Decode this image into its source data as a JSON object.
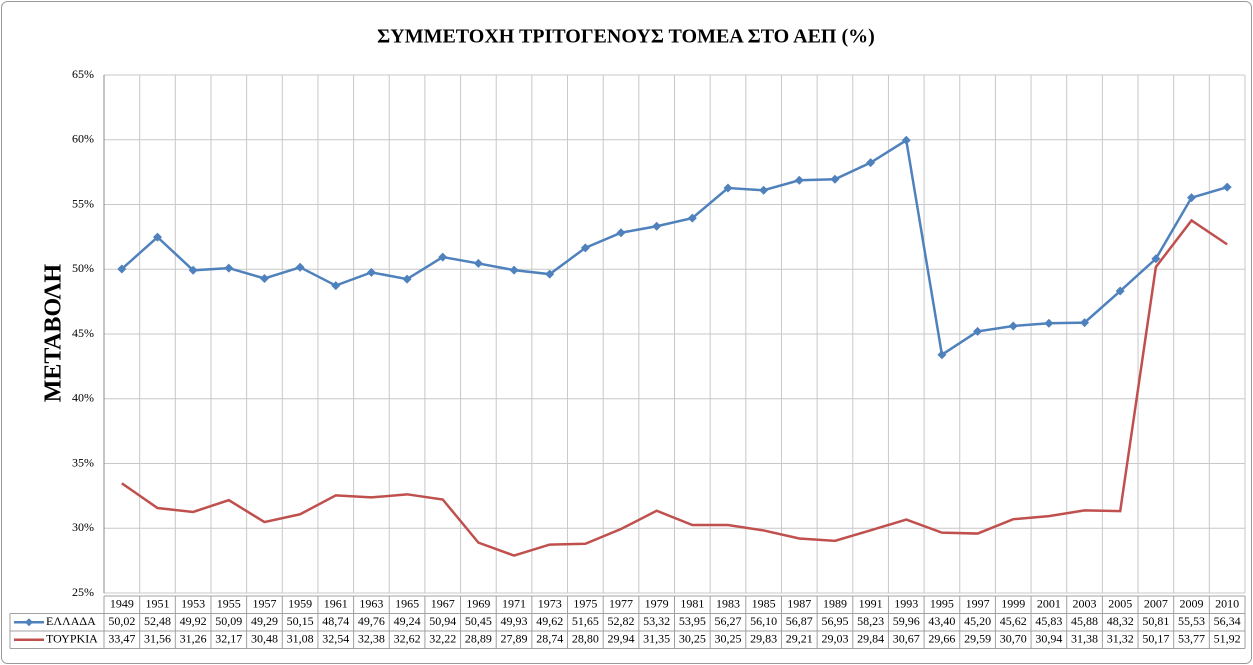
{
  "chart_data": {
    "type": "line",
    "title": "ΣΥΜΜΕΤΟΧΗ ΤΡΙΤΟΓΕΝΟΥΣ ΤΟΜΕΑ ΣΤΟ ΑΕΠ (%)",
    "y_label": "ΜΕΤΑΒΟΛΗ",
    "categories": [
      "1949",
      "1951",
      "1953",
      "1955",
      "1957",
      "1959",
      "1961",
      "1963",
      "1965",
      "1967",
      "1969",
      "1971",
      "1973",
      "1975",
      "1977",
      "1979",
      "1981",
      "1983",
      "1985",
      "1987",
      "1989",
      "1991",
      "1993",
      "1995",
      "1997",
      "1999",
      "2001",
      "2003",
      "2005",
      "2007",
      "2009",
      "2010"
    ],
    "series": [
      {
        "name": "ΕΛΛΑΔΑ",
        "color": "#4f81bd",
        "marker": "diamond",
        "values": [
          50.02,
          52.48,
          49.92,
          50.09,
          49.29,
          50.15,
          48.74,
          49.76,
          49.24,
          50.94,
          50.45,
          49.93,
          49.62,
          51.65,
          52.82,
          53.32,
          53.95,
          56.27,
          56.1,
          56.87,
          56.95,
          58.23,
          59.96,
          43.4,
          45.2,
          45.62,
          45.83,
          45.88,
          48.32,
          50.81,
          55.53,
          56.34
        ],
        "value_labels": [
          "50,02",
          "52,48",
          "49,92",
          "50,09",
          "49,29",
          "50,15",
          "48,74",
          "49,76",
          "49,24",
          "50,94",
          "50,45",
          "49,93",
          "49,62",
          "51,65",
          "52,82",
          "53,32",
          "53,95",
          "56,27",
          "56,10",
          "56,87",
          "56,95",
          "58,23",
          "59,96",
          "43,40",
          "45,20",
          "45,62",
          "45,83",
          "45,88",
          "48,32",
          "50,81",
          "55,53",
          "56,34"
        ]
      },
      {
        "name": "ΤΟΥΡΚΙΑ",
        "color": "#c0504d",
        "marker": "none",
        "values": [
          33.47,
          31.56,
          31.26,
          32.17,
          30.48,
          31.08,
          32.54,
          32.38,
          32.62,
          32.22,
          28.89,
          27.89,
          28.74,
          28.8,
          29.94,
          31.35,
          30.25,
          30.25,
          29.83,
          29.21,
          29.03,
          29.84,
          30.67,
          29.66,
          29.59,
          30.7,
          30.94,
          31.38,
          31.32,
          50.17,
          53.77,
          51.92
        ],
        "value_labels": [
          "33,47",
          "31,56",
          "31,26",
          "32,17",
          "30,48",
          "31,08",
          "32,54",
          "32,38",
          "32,62",
          "32,22",
          "28,89",
          "27,89",
          "28,74",
          "28,80",
          "29,94",
          "31,35",
          "30,25",
          "30,25",
          "29,83",
          "29,21",
          "29,03",
          "29,84",
          "30,67",
          "29,66",
          "29,59",
          "30,70",
          "30,94",
          "31,38",
          "31,32",
          "50,17",
          "53,77",
          "51,92"
        ]
      }
    ],
    "ylim": [
      25,
      65
    ],
    "yticks": [
      {
        "value": 25,
        "label": "25%"
      },
      {
        "value": 30,
        "label": "30%"
      },
      {
        "value": 35,
        "label": "35%"
      },
      {
        "value": 40,
        "label": "40%"
      },
      {
        "value": 45,
        "label": "45%"
      },
      {
        "value": 50,
        "label": "50%"
      },
      {
        "value": 55,
        "label": "55%"
      },
      {
        "value": 60,
        "label": "60%"
      },
      {
        "value": 65,
        "label": "65%"
      }
    ],
    "grid": true
  }
}
